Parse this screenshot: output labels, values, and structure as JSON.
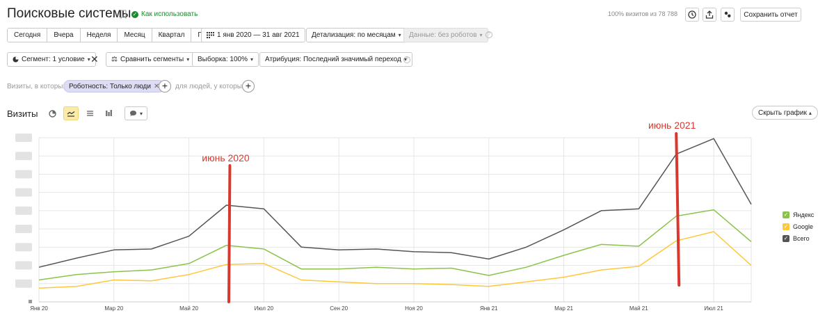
{
  "header": {
    "title": "Поисковые системы",
    "how_to_use": "Как использовать",
    "visits_percent": "100% визитов из 78 788",
    "save_report": "Сохранить отчет"
  },
  "periods": [
    "Сегодня",
    "Вчера",
    "Неделя",
    "Месяц",
    "Квартал",
    "Год"
  ],
  "date_range": "1 янв 2020 — 31 авг 2021",
  "detail": "Детализация: по месяцам",
  "data_filter": "Данные: без роботов",
  "segment": {
    "segment_label": "Сегмент: 1 условие",
    "compare_label": "Сравнить сегменты",
    "sample_label": "Выборка: 100%",
    "attribution_label": "Атрибуция: Последний значимый переход"
  },
  "filter": {
    "prefix": "Визиты, в которых",
    "chip": "Роботность: Только люди",
    "people_text": "для людей, у которых"
  },
  "chart_section": {
    "title": "Визиты",
    "hide_chart": "Скрыть график"
  },
  "chart_data": {
    "type": "line",
    "x": [
      "Янв 20",
      "Фев 20",
      "Мар 20",
      "Апр 20",
      "Май 20",
      "Июн 20",
      "Июл 20",
      "Авг 20",
      "Сен 20",
      "Окт 20",
      "Ноя 20",
      "Дек 20",
      "Янв 21",
      "Фев 21",
      "Мар 21",
      "Апр 21",
      "Май 21",
      "Июн 21",
      "Июл 21",
      "Авг 21"
    ],
    "x_tick_labels": [
      "Янв 20",
      "Мар 20",
      "Май 20",
      "Июл 20",
      "Сен 20",
      "Ноя 20",
      "Янв 21",
      "Мар 21",
      "Май 21",
      "Июл 21"
    ],
    "ylim": [
      0,
      9
    ],
    "y_tick_labels_obscured": true,
    "grid": true,
    "legend_position": "right",
    "series": [
      {
        "name": "Яндекс",
        "color": "#8bc34a",
        "values": [
          1.2,
          1.5,
          1.65,
          1.75,
          2.1,
          3.1,
          2.9,
          1.8,
          1.8,
          1.9,
          1.8,
          1.85,
          1.45,
          1.9,
          2.55,
          3.15,
          3.05,
          4.7,
          5.05,
          3.3
        ]
      },
      {
        "name": "Google",
        "color": "#ffc73a",
        "values": [
          0.75,
          0.85,
          1.2,
          1.15,
          1.5,
          2.05,
          2.1,
          1.2,
          1.1,
          1.0,
          1.0,
          0.95,
          0.85,
          1.1,
          1.35,
          1.75,
          1.95,
          3.35,
          3.85,
          2.0
        ]
      },
      {
        "name": "Всего",
        "color": "#555555",
        "values": [
          1.9,
          2.4,
          2.85,
          2.9,
          3.6,
          5.3,
          5.1,
          3.0,
          2.85,
          2.9,
          2.75,
          2.7,
          2.35,
          3.0,
          3.95,
          5.0,
          5.1,
          8.1,
          8.95,
          5.35
        ]
      }
    ],
    "annotations": [
      {
        "label": "июнь 2020",
        "x": "Июн 20"
      },
      {
        "label": "июнь 2021",
        "x": "Июн 21"
      }
    ]
  },
  "colors": {
    "accent_green": "#1b8a2e",
    "annotation_red": "#d9382e",
    "active_view_bg": "#fbeba7",
    "chip_bg": "#dcdcf5"
  }
}
